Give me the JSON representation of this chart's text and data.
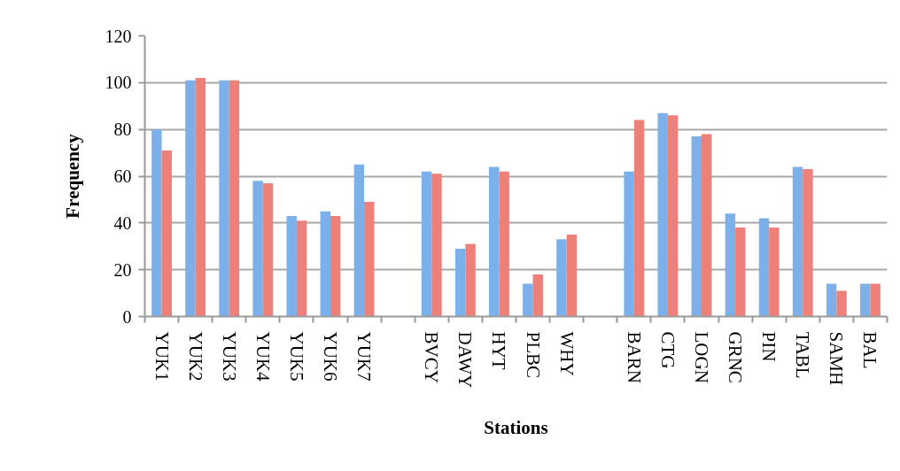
{
  "chart_data": {
    "type": "bar",
    "xlabel": "Stations",
    "ylabel": "Frequency",
    "categories": [
      "YUK1",
      "YUK2",
      "YUK3",
      "YUK4",
      "YUK5",
      "YUK6",
      "YUK7",
      null,
      "BVCY",
      "DAWY",
      "HYT",
      "PLBC",
      "WHY",
      null,
      "BARN",
      "CTG",
      "LOGN",
      "GRNC",
      "PIN",
      "TABL",
      "SAMH",
      "BAL"
    ],
    "series": [
      {
        "color": "#7cb0ea",
        "values": [
          80,
          101,
          101,
          58,
          43,
          45,
          65,
          null,
          62,
          29,
          64,
          14,
          33,
          null,
          62,
          87,
          77,
          44,
          42,
          64,
          14,
          14
        ]
      },
      {
        "color": "#ed8179",
        "values": [
          71,
          102,
          101,
          57,
          41,
          43,
          49,
          null,
          61,
          31,
          62,
          18,
          35,
          null,
          84,
          86,
          78,
          38,
          38,
          63,
          11,
          14
        ]
      }
    ],
    "ylim": [
      0,
      120
    ],
    "yticks": [
      0,
      20,
      40,
      60,
      80,
      100,
      120
    ],
    "grid": "y"
  }
}
